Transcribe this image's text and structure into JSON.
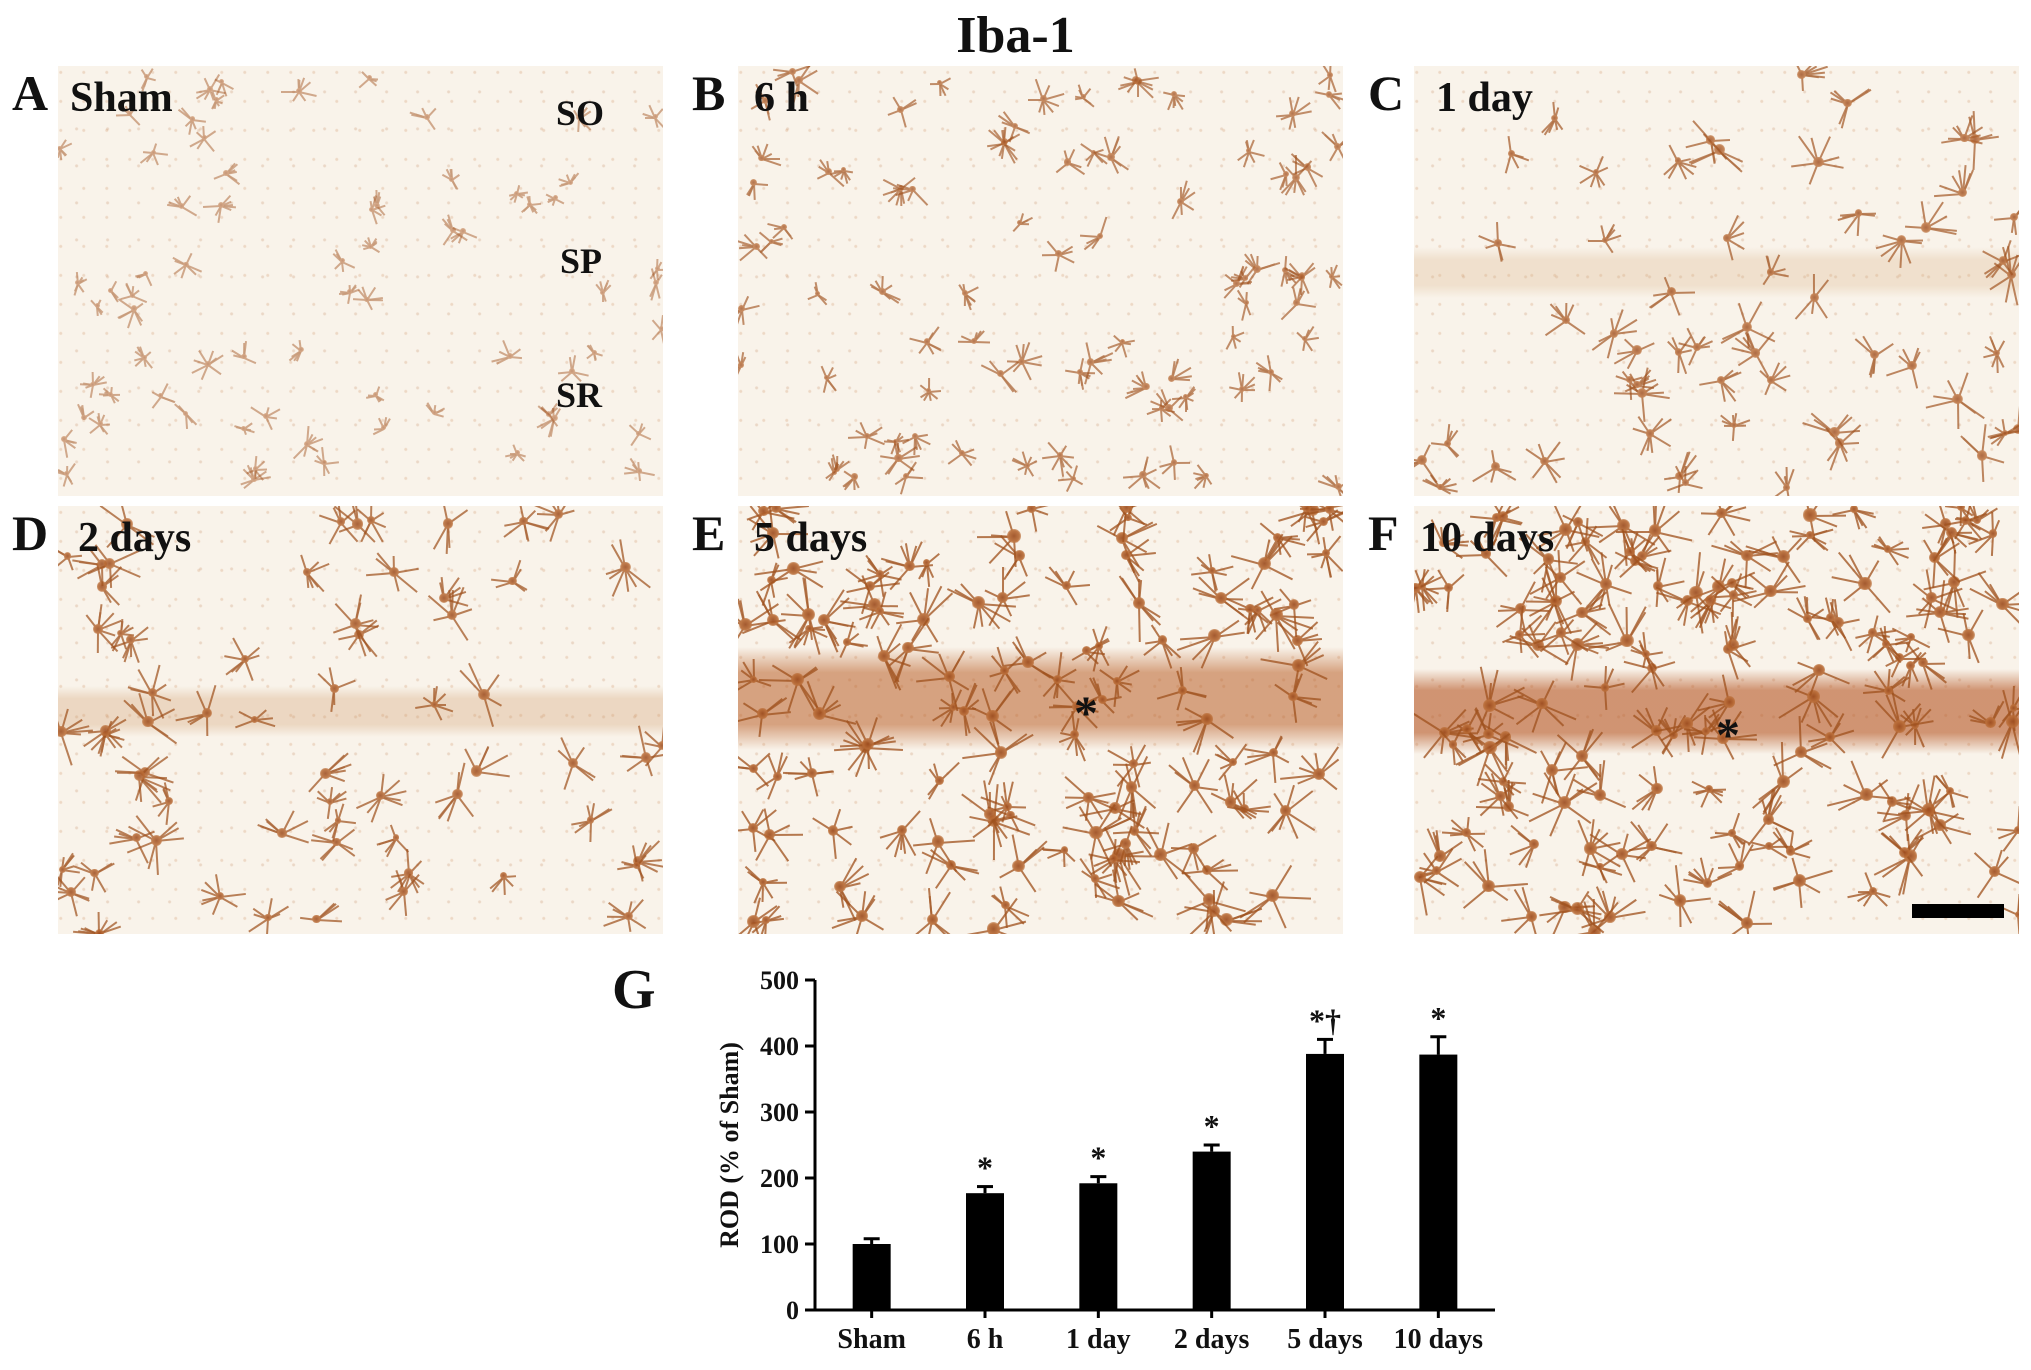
{
  "figure_title": "Iba-1",
  "panels": [
    {
      "letter": "A",
      "label": "Sham",
      "layers": [
        "SO",
        "SP",
        "SR"
      ]
    },
    {
      "letter": "B",
      "label": "6 h"
    },
    {
      "letter": "C",
      "label": "1 day"
    },
    {
      "letter": "D",
      "label": "2 days"
    },
    {
      "letter": "E",
      "label": "5 days",
      "marker": "*"
    },
    {
      "letter": "F",
      "label": "10 days",
      "marker": "*"
    }
  ],
  "graph_letter": "G",
  "colors": {
    "stain": "#b06a35",
    "background": "#f9f3ea",
    "bar": "#000000"
  },
  "chart_data": {
    "type": "bar",
    "categories": [
      "Sham",
      "6 h",
      "1 day",
      "2 days",
      "5 days",
      "10 days"
    ],
    "values": [
      100,
      177,
      192,
      240,
      388,
      387
    ],
    "errors": [
      8,
      10,
      10,
      10,
      22,
      27
    ],
    "annotations": [
      "",
      "*",
      "*",
      "*",
      "*†",
      "*"
    ],
    "title": "",
    "xlabel": "",
    "ylabel": "ROD (% of Sham)",
    "ylim": [
      0,
      500
    ],
    "yticks": [
      0,
      100,
      200,
      300,
      400,
      500
    ],
    "grid": false
  }
}
